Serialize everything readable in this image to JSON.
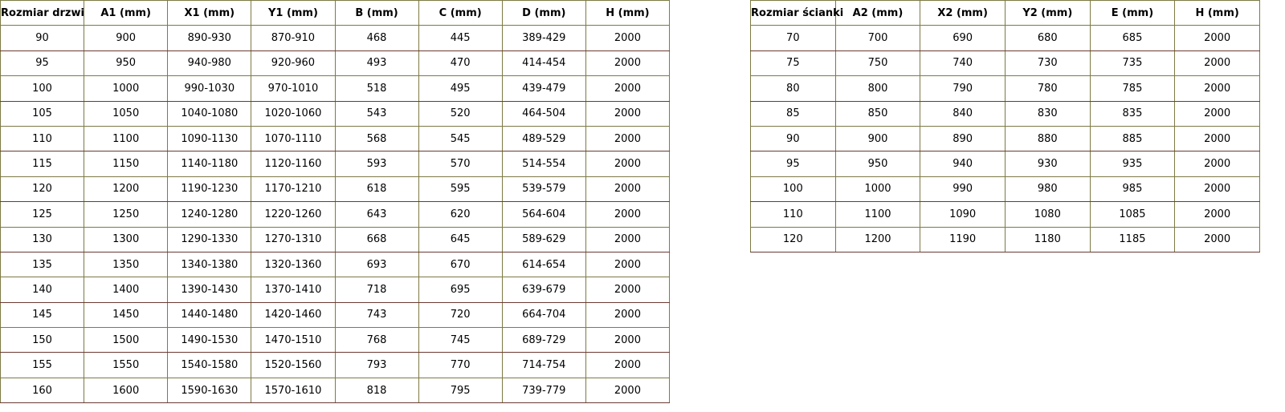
{
  "doors_table": {
    "headers": [
      "Rozmiar drzwi",
      "A1 (mm)",
      "X1 (mm)",
      "Y1 (mm)",
      "B (mm)",
      "C (mm)",
      "D (mm)",
      "H (mm)"
    ],
    "rows": [
      [
        "90",
        "900",
        "890-930",
        "870-910",
        "468",
        "445",
        "389-429",
        "2000"
      ],
      [
        "95",
        "950",
        "940-980",
        "920-960",
        "493",
        "470",
        "414-454",
        "2000"
      ],
      [
        "100",
        "1000",
        "990-1030",
        "970-1010",
        "518",
        "495",
        "439-479",
        "2000"
      ],
      [
        "105",
        "1050",
        "1040-1080",
        "1020-1060",
        "543",
        "520",
        "464-504",
        "2000"
      ],
      [
        "110",
        "1100",
        "1090-1130",
        "1070-1110",
        "568",
        "545",
        "489-529",
        "2000"
      ],
      [
        "115",
        "1150",
        "1140-1180",
        "1120-1160",
        "593",
        "570",
        "514-554",
        "2000"
      ],
      [
        "120",
        "1200",
        "1190-1230",
        "1170-1210",
        "618",
        "595",
        "539-579",
        "2000"
      ],
      [
        "125",
        "1250",
        "1240-1280",
        "1220-1260",
        "643",
        "620",
        "564-604",
        "2000"
      ],
      [
        "130",
        "1300",
        "1290-1330",
        "1270-1310",
        "668",
        "645",
        "589-629",
        "2000"
      ],
      [
        "135",
        "1350",
        "1340-1380",
        "1320-1360",
        "693",
        "670",
        "614-654",
        "2000"
      ],
      [
        "140",
        "1400",
        "1390-1430",
        "1370-1410",
        "718",
        "695",
        "639-679",
        "2000"
      ],
      [
        "145",
        "1450",
        "1440-1480",
        "1420-1460",
        "743",
        "720",
        "664-704",
        "2000"
      ],
      [
        "150",
        "1500",
        "1490-1530",
        "1470-1510",
        "768",
        "745",
        "689-729",
        "2000"
      ],
      [
        "155",
        "1550",
        "1540-1580",
        "1520-1560",
        "793",
        "770",
        "714-754",
        "2000"
      ],
      [
        "160",
        "1600",
        "1590-1630",
        "1570-1610",
        "818",
        "795",
        "739-779",
        "2000"
      ]
    ]
  },
  "wall_table": {
    "headers": [
      "Rozmiar ścianki",
      "A2 (mm)",
      "X2 (mm)",
      "Y2 (mm)",
      "E (mm)",
      "H (mm)"
    ],
    "rows": [
      [
        "70",
        "700",
        "690",
        "680",
        "685",
        "2000"
      ],
      [
        "75",
        "750",
        "740",
        "730",
        "735",
        "2000"
      ],
      [
        "80",
        "800",
        "790",
        "780",
        "785",
        "2000"
      ],
      [
        "85",
        "850",
        "840",
        "830",
        "835",
        "2000"
      ],
      [
        "90",
        "900",
        "890",
        "880",
        "885",
        "2000"
      ],
      [
        "95",
        "950",
        "940",
        "930",
        "935",
        "2000"
      ],
      [
        "100",
        "1000",
        "990",
        "980",
        "985",
        "2000"
      ],
      [
        "110",
        "1100",
        "1090",
        "1080",
        "1085",
        "2000"
      ],
      [
        "120",
        "1200",
        "1190",
        "1180",
        "1185",
        "2000"
      ]
    ]
  }
}
